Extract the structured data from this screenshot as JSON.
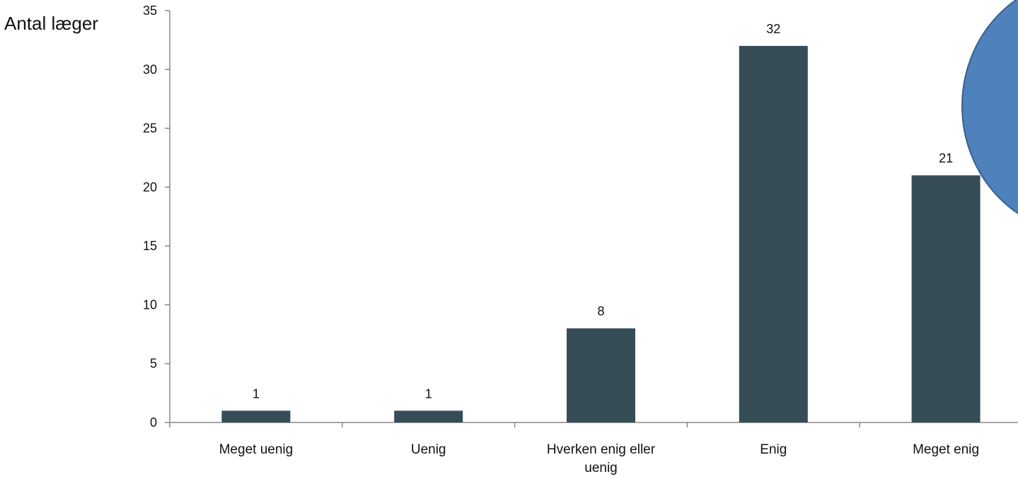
{
  "chart_data": {
    "type": "bar",
    "ylabel": "Antal læger",
    "categories": [
      "Meget uenig",
      "Uenig",
      "Hverken enig eller uenig",
      "Enig",
      "Meget enig"
    ],
    "category_lines": [
      [
        "Meget uenig"
      ],
      [
        "Uenig"
      ],
      [
        "Hverken enig eller",
        "uenig"
      ],
      [
        "Enig"
      ],
      [
        "Meget enig"
      ]
    ],
    "values": [
      1,
      1,
      8,
      32,
      21
    ],
    "data_labels": [
      "1",
      "1",
      "8",
      "32",
      "21"
    ],
    "ylim": [
      0,
      35
    ],
    "yticks": [
      0,
      5,
      10,
      15,
      20,
      25,
      30,
      35
    ],
    "grid": false,
    "legend": "none",
    "bar_color": "#364d57",
    "axis_color": "#888888"
  },
  "decoration": {
    "shape": "circle-partial",
    "fill_color": "#4f81bd",
    "stroke_color": "#3a5f8a"
  }
}
